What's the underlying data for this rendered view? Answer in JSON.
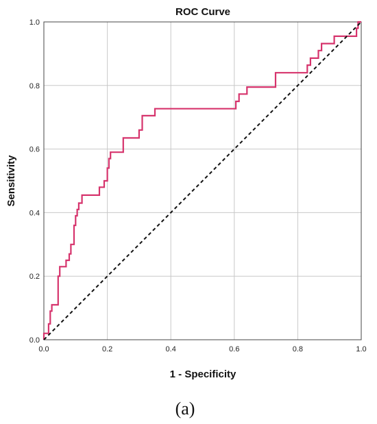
{
  "chart_data": {
    "type": "line",
    "title": "ROC Curve",
    "xlabel": "1 - Specificity",
    "ylabel": "Sensitivity",
    "xlim": [
      0,
      1
    ],
    "ylim": [
      0,
      1
    ],
    "x_ticks": [
      "0.0",
      "0.2",
      "0.4",
      "0.6",
      "0.8",
      "1.0"
    ],
    "y_ticks": [
      "0.0",
      "0.2",
      "0.4",
      "0.6",
      "0.8",
      "1.0"
    ],
    "grid": true,
    "legend": "none",
    "series": [
      {
        "color": "#d6336c",
        "style": "step",
        "points": [
          [
            0.0,
            0.0
          ],
          [
            0.0,
            0.02
          ],
          [
            0.015,
            0.02
          ],
          [
            0.015,
            0.05
          ],
          [
            0.02,
            0.05
          ],
          [
            0.02,
            0.09
          ],
          [
            0.025,
            0.09
          ],
          [
            0.025,
            0.11
          ],
          [
            0.045,
            0.11
          ],
          [
            0.045,
            0.2
          ],
          [
            0.05,
            0.2
          ],
          [
            0.05,
            0.23
          ],
          [
            0.07,
            0.23
          ],
          [
            0.07,
            0.25
          ],
          [
            0.08,
            0.25
          ],
          [
            0.08,
            0.27
          ],
          [
            0.085,
            0.27
          ],
          [
            0.085,
            0.3
          ],
          [
            0.095,
            0.3
          ],
          [
            0.095,
            0.36
          ],
          [
            0.1,
            0.36
          ],
          [
            0.1,
            0.39
          ],
          [
            0.105,
            0.39
          ],
          [
            0.105,
            0.41
          ],
          [
            0.11,
            0.41
          ],
          [
            0.11,
            0.43
          ],
          [
            0.12,
            0.43
          ],
          [
            0.12,
            0.455
          ],
          [
            0.175,
            0.455
          ],
          [
            0.175,
            0.48
          ],
          [
            0.19,
            0.48
          ],
          [
            0.19,
            0.5
          ],
          [
            0.2,
            0.5
          ],
          [
            0.2,
            0.54
          ],
          [
            0.205,
            0.54
          ],
          [
            0.205,
            0.57
          ],
          [
            0.21,
            0.57
          ],
          [
            0.21,
            0.59
          ],
          [
            0.25,
            0.59
          ],
          [
            0.25,
            0.635
          ],
          [
            0.3,
            0.635
          ],
          [
            0.3,
            0.66
          ],
          [
            0.31,
            0.66
          ],
          [
            0.31,
            0.705
          ],
          [
            0.35,
            0.705
          ],
          [
            0.35,
            0.727
          ],
          [
            0.605,
            0.727
          ],
          [
            0.605,
            0.75
          ],
          [
            0.615,
            0.75
          ],
          [
            0.615,
            0.773
          ],
          [
            0.64,
            0.773
          ],
          [
            0.64,
            0.795
          ],
          [
            0.73,
            0.795
          ],
          [
            0.73,
            0.84
          ],
          [
            0.83,
            0.84
          ],
          [
            0.83,
            0.864
          ],
          [
            0.84,
            0.864
          ],
          [
            0.84,
            0.886
          ],
          [
            0.865,
            0.886
          ],
          [
            0.865,
            0.91
          ],
          [
            0.875,
            0.91
          ],
          [
            0.875,
            0.932
          ],
          [
            0.915,
            0.932
          ],
          [
            0.915,
            0.955
          ],
          [
            0.985,
            0.955
          ],
          [
            0.985,
            0.98
          ],
          [
            0.99,
            0.98
          ],
          [
            0.99,
            1.0
          ],
          [
            1.0,
            1.0
          ]
        ]
      },
      {
        "color": "#111111",
        "style": "dashed",
        "points": [
          [
            0.0,
            0.0
          ],
          [
            1.0,
            1.0
          ]
        ]
      }
    ]
  },
  "caption": "(a)"
}
